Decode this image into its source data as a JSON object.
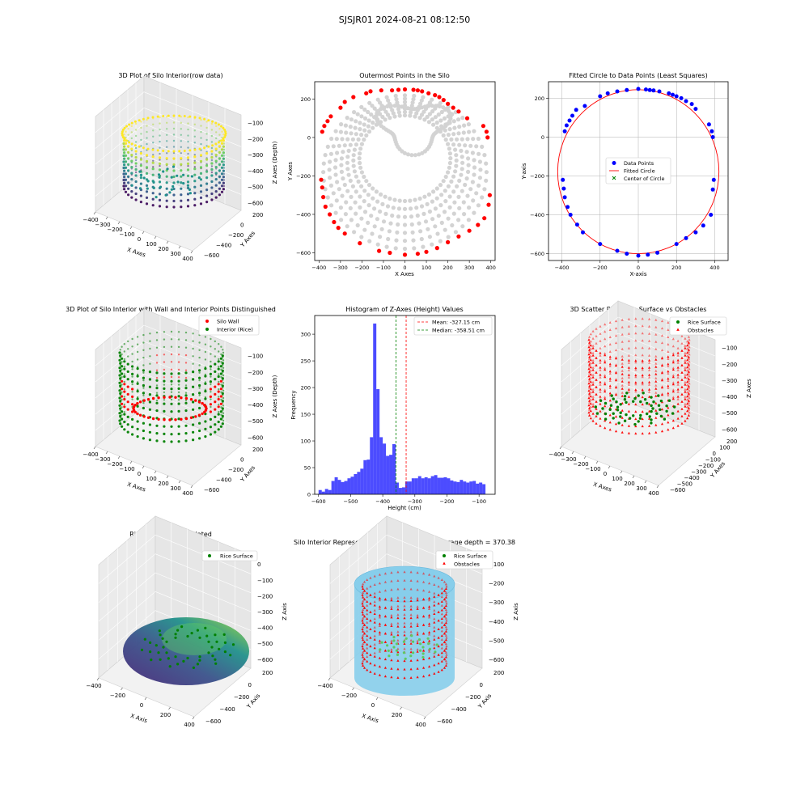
{
  "suptitle": "SJSJR01 2024-08-21 08:12:50",
  "colors": {
    "wall_red": "#ff0000",
    "interior_green": "#008000",
    "grey_points": "#d3d3d3",
    "data_blue": "#0000ff",
    "hist_blue": "#0000ff",
    "mean_line": "#ff0000",
    "median_line": "#008000",
    "cylinder": "#87ceeb",
    "viridis": [
      "#440154",
      "#3b528b",
      "#21918c",
      "#5ec962",
      "#fde725"
    ]
  },
  "panels": {
    "p1": {
      "title": "3D Plot of Silo Interior(row data)",
      "xlabel": "X Axes",
      "ylabel": "Y Axes",
      "zlabel": "Z Axes (Depth)",
      "xticks": [
        "−400",
        "−300",
        "−200",
        "−100",
        "0",
        "100",
        "200",
        "300",
        "400"
      ],
      "yticks": [
        "200",
        "0",
        "−200",
        "−400",
        "−600"
      ],
      "zticks": [
        "−100",
        "−200",
        "−300",
        "−400",
        "−500",
        "−600"
      ]
    },
    "p2": {
      "title": "Outermost Points in the Silo",
      "xlabel": "X Axes",
      "ylabel": "Y Axes",
      "xticks": [
        "−400",
        "−300",
        "−200",
        "−100",
        "0",
        "100",
        "200",
        "300",
        "400"
      ],
      "yticks": [
        "200",
        "0",
        "−200",
        "−400",
        "−600"
      ]
    },
    "p3": {
      "title": "Fitted Circle to Data Points (Least Squares)",
      "xlabel": "X-axis",
      "ylabel": "Y-axis",
      "xticks": [
        "−400",
        "−200",
        "0",
        "200",
        "400"
      ],
      "yticks": [
        "200",
        "0",
        "−200",
        "−400",
        "−600"
      ],
      "legend": [
        "Data Points",
        "Fitted Circle",
        "Center of Circle"
      ]
    },
    "p4": {
      "title": "3D Plot of Silo Interior with Wall and Interior Points Distinguished",
      "xlabel": "X Axes",
      "ylabel": "Y Axes",
      "zlabel": "Z Axes (Depth)",
      "xticks": [
        "−400",
        "−300",
        "−200",
        "−100",
        "0",
        "100",
        "200",
        "300",
        "400"
      ],
      "yticks": [
        "200",
        "0",
        "−200",
        "−400",
        "−600"
      ],
      "zticks": [
        "−100",
        "−200",
        "−300",
        "−400",
        "−500",
        "−600"
      ],
      "legend": [
        "Silo Wall",
        "Interior (Rice)"
      ]
    },
    "p5": {
      "title": "Histogram of Z-Axes (Height) Values",
      "xlabel": "Height (cm)",
      "ylabel": "Frequency",
      "xticks": [
        "−600",
        "−500",
        "−400",
        "−300",
        "−200",
        "−100"
      ],
      "yticks": [
        "0",
        "50",
        "100",
        "150",
        "200",
        "250",
        "300"
      ],
      "legend": [
        "Mean: -327.15 cm",
        "Median: -358.51 cm"
      ]
    },
    "p6": {
      "title": "3D Scatter Plot: Rice Surface vs Obstacles",
      "xlabel": "X Axes",
      "ylabel": "Y Axes",
      "zlabel": "Z Axes",
      "xticks": [
        "−400",
        "−300",
        "−200",
        "−100",
        "0",
        "100",
        "200",
        "300",
        "400"
      ],
      "yticks": [
        "200",
        "100",
        "0",
        "−100",
        "−200",
        "−300",
        "−400",
        "−500",
        "−600"
      ],
      "zticks": [
        "−100",
        "−200",
        "−300",
        "−400",
        "−500",
        "−600"
      ],
      "legend": [
        "Rice Surface",
        "Obstacles"
      ]
    },
    "p7": {
      "title": "Rice Surface Interpolated",
      "subtitle": "depth = 370.38",
      "xlabel": "X Axis",
      "ylabel": "Y Axis",
      "zlabel": "Z Axis",
      "xticks": [
        "−400",
        "−200",
        "0",
        "200",
        "400"
      ],
      "yticks": [
        "200",
        "0",
        "−200",
        "−400",
        "−600"
      ],
      "zticks": [
        "0",
        "−100",
        "−200",
        "−300",
        "−400",
        "−500",
        "−600"
      ],
      "legend": [
        "Rice Surface"
      ]
    },
    "p8": {
      "title": "Silo Interior Representation using weighted average depth = 370.38",
      "xlabel": "X Axis",
      "ylabel": "Y Axis",
      "zlabel": "Z Axis",
      "xticks": [
        "−400",
        "−200",
        "0",
        "200",
        "400"
      ],
      "yticks": [
        "200",
        "0",
        "−200",
        "−400",
        "−600"
      ],
      "zticks": [
        "−100",
        "−200",
        "−300",
        "−400",
        "−500",
        "−600"
      ],
      "legend": [
        "Rice Surface",
        "Obstacles"
      ]
    }
  },
  "chart_data": [
    {
      "type": "scatter",
      "title": "Outermost Points in the Silo",
      "xlabel": "X Axes",
      "ylabel": "Y Axes",
      "xlim": [
        -420,
        420
      ],
      "ylim": [
        -640,
        290
      ],
      "series": [
        {
          "x": [
            -385,
            -375,
            -360,
            -345,
            -300,
            -280,
            -240,
            -180,
            -160,
            -110,
            -60,
            -30,
            0,
            40,
            60,
            80,
            110,
            140,
            160,
            180,
            200,
            225,
            250,
            290,
            365,
            380,
            385,
            -390,
            -385,
            -380,
            -370,
            -350,
            -330,
            -310,
            -280,
            -210,
            -120,
            -70,
            0,
            60,
            100,
            150,
            200,
            250,
            300,
            340,
            370,
            390,
            395
          ],
          "y": [
            30,
            60,
            85,
            110,
            155,
            185,
            210,
            230,
            240,
            245,
            245,
            248,
            250,
            248,
            245,
            240,
            230,
            220,
            210,
            195,
            175,
            155,
            135,
            100,
            60,
            30,
            0,
            -220,
            -260,
            -310,
            -360,
            -400,
            -440,
            -470,
            -500,
            -550,
            -590,
            -600,
            -610,
            -605,
            -595,
            -575,
            -545,
            -515,
            -485,
            -455,
            -420,
            -350,
            -300
          ]
        }
      ]
    },
    {
      "type": "scatter",
      "title": "Fitted Circle to Data Points (Least Squares)",
      "xlabel": "X-axis",
      "ylabel": "Y-axis",
      "xlim": [
        -470,
        470
      ],
      "ylim": [
        -635,
        285
      ],
      "series": [
        {
          "name": "Data Points",
          "x": [
            -385,
            -375,
            -360,
            -345,
            -325,
            -280,
            -200,
            -160,
            -110,
            -60,
            0,
            40,
            60,
            80,
            110,
            160,
            180,
            200,
            225,
            250,
            280,
            300,
            370,
            385,
            390,
            -395,
            -390,
            -385,
            -370,
            -355,
            -320,
            -290,
            -200,
            -110,
            -60,
            0,
            50,
            100,
            200,
            250,
            300,
            340,
            380,
            390,
            395
          ],
          "y": [
            30,
            60,
            85,
            110,
            140,
            160,
            210,
            225,
            235,
            242,
            248,
            245,
            242,
            240,
            235,
            225,
            218,
            210,
            200,
            185,
            170,
            145,
            65,
            30,
            0,
            -220,
            -265,
            -310,
            -360,
            -400,
            -450,
            -490,
            -550,
            -585,
            -600,
            -610,
            -605,
            -595,
            -550,
            -520,
            -490,
            -455,
            -400,
            -270,
            -220
          ]
        },
        {
          "name": "Fitted Circle",
          "center": [
            0,
            -178
          ],
          "radius": 422
        },
        {
          "name": "Center of Circle",
          "x": [
            0
          ],
          "y": [
            -178
          ]
        }
      ]
    },
    {
      "type": "bar",
      "title": "Histogram of Z-Axes (Height) Values",
      "xlabel": "Height (cm)",
      "ylabel": "Frequency",
      "xlim": [
        -612,
        -50
      ],
      "ylim": [
        0,
        335
      ],
      "bin_start": -600,
      "bin_width": 10,
      "values": [
        8,
        5,
        10,
        8,
        25,
        32,
        27,
        23,
        25,
        30,
        33,
        38,
        42,
        48,
        64,
        65,
        107,
        320,
        197,
        107,
        95,
        72,
        74,
        94,
        22,
        12,
        13,
        24,
        24,
        30,
        30,
        34,
        30,
        32,
        30,
        34,
        36,
        31,
        31,
        32,
        30,
        26,
        24,
        23,
        27,
        24,
        22,
        24,
        25,
        20,
        22,
        19
      ],
      "mean": -327.15,
      "median": -358.51
    }
  ]
}
